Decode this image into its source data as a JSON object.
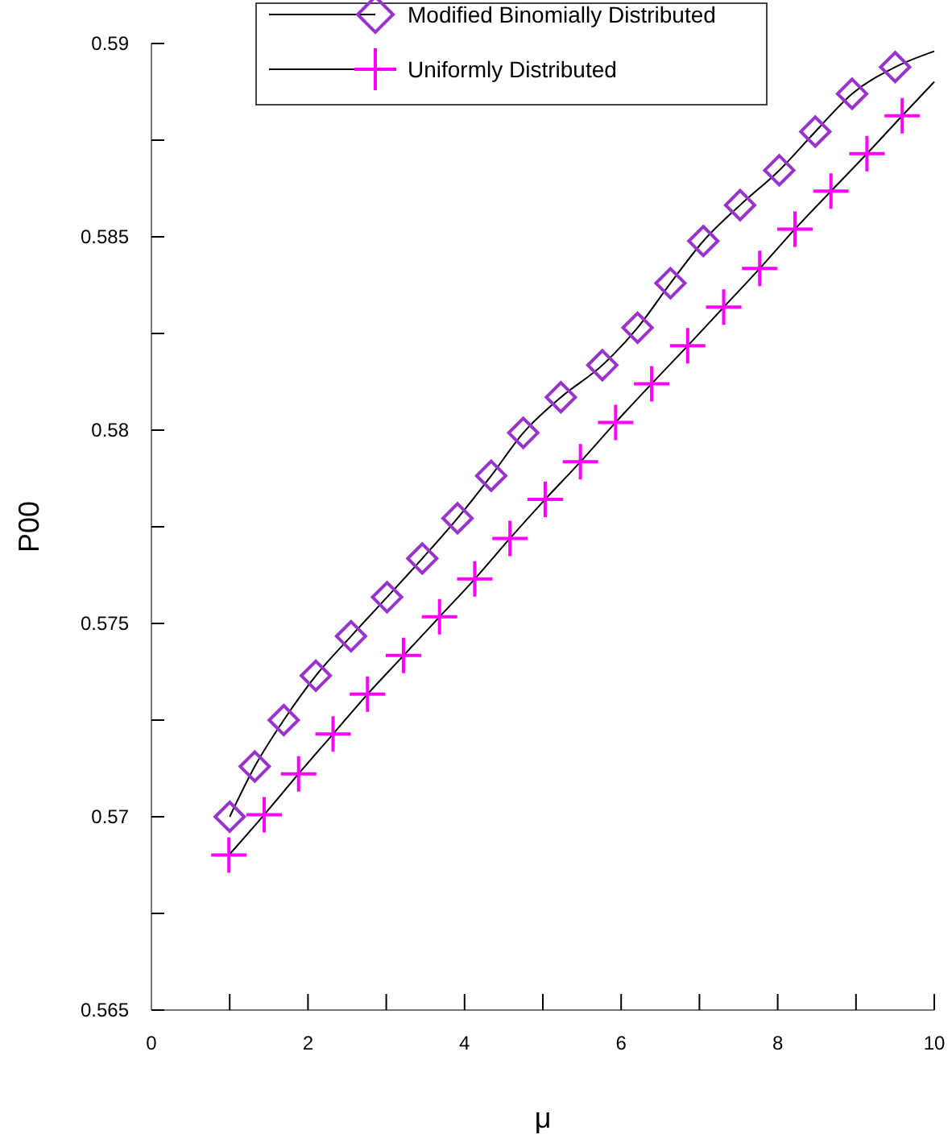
{
  "chart_data": {
    "type": "line",
    "xlabel": "μ",
    "ylabel": "P00",
    "xlim": [
      0,
      10
    ],
    "ylim": [
      0.565,
      0.59
    ],
    "xticks": [
      0,
      {
        "value": 1,
        "label": null
      },
      2,
      {
        "value": 3,
        "label": null
      },
      4,
      {
        "value": 5,
        "label": null
      },
      6,
      {
        "value": 7,
        "label": null
      },
      8,
      {
        "value": 9,
        "label": null
      },
      10
    ],
    "yticks": [
      0.565,
      {
        "value": 0.5675,
        "label": null
      },
      0.57,
      {
        "value": 0.5725,
        "label": null
      },
      0.575,
      {
        "value": 0.5775,
        "label": null
      },
      0.58,
      {
        "value": 0.5825,
        "label": null
      },
      0.585,
      {
        "value": 0.5875,
        "label": null
      },
      0.59
    ],
    "legend": "top",
    "grid": false,
    "series": [
      {
        "color": "#000000",
        "marker": "none",
        "x": [
          1,
          1.32,
          1.69,
          2.1,
          2.55,
          3.01,
          3.46,
          3.91,
          4.34,
          4.75,
          5.23,
          5.76,
          6.21,
          6.63,
          7.05,
          7.52,
          8.02,
          8.48,
          8.95,
          9.5,
          10
        ],
        "values": [
          0.57,
          0.5713,
          0.5725,
          0.57365,
          0.57467,
          0.57568,
          0.57668,
          0.57772,
          0.57882,
          0.57993,
          0.58085,
          0.58168,
          0.58265,
          0.5838,
          0.58489,
          0.58582,
          0.58672,
          0.58772,
          0.5887,
          0.58939,
          0.5898
        ]
      },
      {
        "color": "#000000",
        "marker": "none",
        "x": [
          0.99,
          1.44,
          1.88,
          2.32,
          2.76,
          3.22,
          3.68,
          4.13,
          4.58,
          5.03,
          5.48,
          5.93,
          6.39,
          6.85,
          7.31,
          7.77,
          8.22,
          8.68,
          9.14,
          9.59,
          10
        ],
        "values": [
          0.56901,
          0.57005,
          0.57111,
          0.57214,
          0.57317,
          0.57417,
          0.57517,
          0.57615,
          0.5772,
          0.57821,
          0.57918,
          0.5802,
          0.5812,
          0.58218,
          0.58318,
          0.58418,
          0.5852,
          0.58618,
          0.58715,
          0.58813,
          0.58901
        ]
      },
      {
        "type": "scatter",
        "name": "Modified Binomially Distributed",
        "color": "#9933cc",
        "marker": "diamond",
        "x": [
          1,
          1.32,
          1.69,
          2.1,
          2.55,
          3.01,
          3.46,
          3.91,
          4.34,
          4.75,
          5.23,
          5.76,
          6.21,
          6.63,
          7.05,
          7.52,
          8.02,
          8.48,
          8.95,
          9.5
        ],
        "values": [
          0.57,
          0.5713,
          0.5725,
          0.57365,
          0.57467,
          0.57568,
          0.57668,
          0.57772,
          0.57882,
          0.57993,
          0.58085,
          0.58168,
          0.58265,
          0.5838,
          0.58489,
          0.58582,
          0.58672,
          0.58772,
          0.5887,
          0.58939
        ]
      },
      {
        "type": "scatter",
        "name": "Uniformly Distributed",
        "color": "#ff00ff",
        "marker": "cross",
        "x": [
          0.99,
          1.44,
          1.88,
          2.32,
          2.76,
          3.22,
          3.68,
          4.13,
          4.58,
          5.03,
          5.48,
          5.93,
          6.39,
          6.85,
          7.31,
          7.77,
          8.22,
          8.68,
          9.14,
          9.59
        ],
        "values": [
          0.56901,
          0.57005,
          0.57111,
          0.57214,
          0.57317,
          0.57417,
          0.57517,
          0.57615,
          0.5772,
          0.57821,
          0.57918,
          0.5802,
          0.5812,
          0.58218,
          0.58318,
          0.58418,
          0.5852,
          0.58618,
          0.58715,
          0.58813
        ]
      }
    ]
  }
}
